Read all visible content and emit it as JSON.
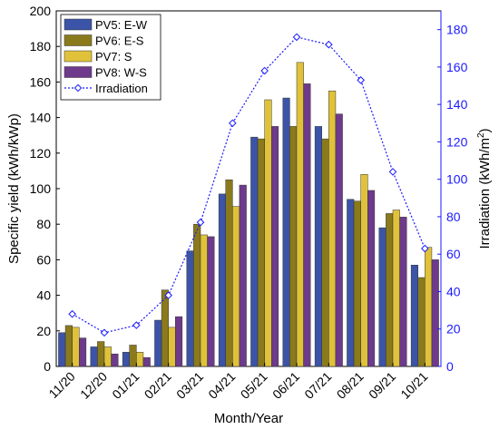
{
  "chart_data": {
    "type": "bar",
    "xlabel": "Month/Year",
    "ylabel": "Specific yield (kWh/kWp)",
    "y2label": "Irradiation (kWh/m",
    "y2label_sup": "2",
    "y2label_end": ")",
    "ylim": [
      0,
      200
    ],
    "y2lim": [
      0,
      190
    ],
    "yticks": [
      0,
      20,
      40,
      60,
      80,
      100,
      120,
      140,
      160,
      180,
      200
    ],
    "y2ticks": [
      0,
      20,
      40,
      60,
      80,
      100,
      120,
      140,
      160,
      180
    ],
    "categories": [
      "11/20",
      "12/20",
      "01/21",
      "02/21",
      "03/21",
      "04/21",
      "05/21",
      "06/21",
      "07/21",
      "08/21",
      "09/21",
      "10/21"
    ],
    "series": [
      {
        "name": "PV5: E-W",
        "color": "#3b54a8",
        "values": [
          19,
          11,
          8,
          26,
          65,
          97,
          129,
          151,
          135,
          94,
          78,
          57
        ]
      },
      {
        "name": "PV6: E-S",
        "color": "#8a7a1c",
        "values": [
          23,
          14,
          12,
          43,
          80,
          105,
          128,
          135,
          128,
          93,
          86,
          50
        ]
      },
      {
        "name": "PV7: S",
        "color": "#e0c23a",
        "values": [
          22,
          11,
          8,
          22,
          74,
          90,
          150,
          171,
          155,
          108,
          88,
          67
        ]
      },
      {
        "name": "PV8: W-S",
        "color": "#6e3a8c",
        "values": [
          16,
          7,
          5,
          28,
          73,
          102,
          135,
          159,
          142,
          99,
          84,
          60
        ]
      }
    ],
    "line_series": {
      "name": "Irradiation",
      "color": "#1a1aff",
      "marker": "diamond",
      "axis": "right",
      "values": [
        28,
        18,
        22,
        38,
        77,
        130,
        158,
        176,
        172,
        153,
        104,
        63
      ]
    },
    "legend_placement": "top-left",
    "grid": false
  }
}
